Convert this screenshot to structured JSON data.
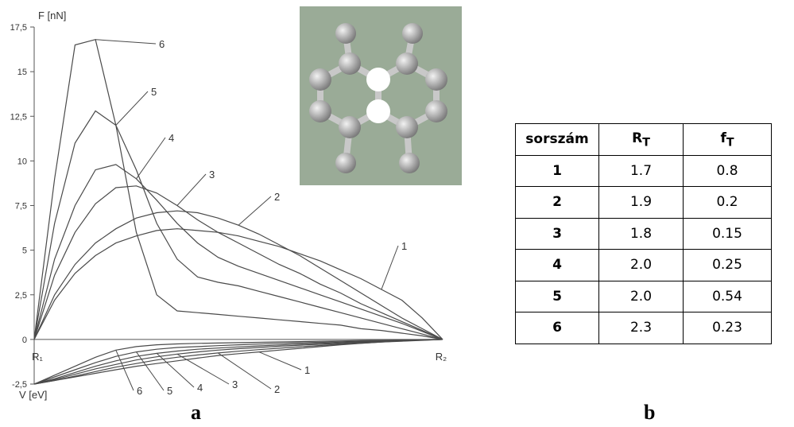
{
  "chart_data": {
    "type": "line",
    "y_label_top": "F [nN]",
    "y_label_bottom": "V [eV]",
    "categories": [
      "R₁",
      null,
      null,
      null,
      null,
      null,
      null,
      null,
      null,
      null,
      null,
      null,
      null,
      null,
      null,
      null,
      null,
      null,
      null,
      null,
      "R₂"
    ],
    "ylim": [
      -2.5,
      17.5
    ],
    "yticks": [
      {
        "value": -2.5,
        "label": "-2,5"
      },
      0,
      {
        "value": 2.5,
        "label": "2,5"
      },
      5,
      {
        "value": 7.5,
        "label": "7,5"
      },
      10,
      {
        "value": 12.5,
        "label": "12,5"
      },
      15,
      {
        "value": 17.5,
        "label": "17,5"
      }
    ],
    "series": [
      {
        "name": "1",
        "color": "#4a4a4a",
        "values": [
          0,
          2.2,
          3.7,
          4.7,
          5.4,
          5.8,
          6.1,
          6.2,
          6.1,
          6.0,
          5.8,
          5.5,
          5.2,
          4.8,
          4.4,
          3.9,
          3.4,
          2.8,
          2.2,
          1.2,
          0
        ]
      },
      {
        "name": "2",
        "color": "#4a4a4a",
        "values": [
          0,
          2.5,
          4.2,
          5.4,
          6.2,
          6.8,
          7.1,
          7.2,
          7.1,
          6.8,
          6.4,
          5.9,
          5.3,
          4.7,
          4.0,
          3.3,
          2.6,
          1.9,
          1.2,
          0.6,
          0
        ]
      },
      {
        "name": "3",
        "color": "#4a4a4a",
        "values": [
          0,
          3.6,
          6.0,
          7.6,
          8.5,
          8.6,
          8.2,
          7.5,
          6.7,
          6.0,
          5.4,
          4.8,
          4.2,
          3.7,
          3.1,
          2.6,
          2.0,
          1.5,
          1.0,
          0.5,
          0
        ]
      },
      {
        "name": "4",
        "color": "#4a4a4a",
        "values": [
          0,
          4.5,
          7.5,
          9.5,
          9.8,
          9.0,
          7.8,
          6.5,
          5.4,
          4.6,
          4.1,
          3.7,
          3.3,
          2.9,
          2.5,
          2.1,
          1.7,
          1.3,
          0.9,
          0.45,
          0
        ]
      },
      {
        "name": "5",
        "color": "#4a4a4a",
        "values": [
          0,
          6.5,
          11,
          12.8,
          12,
          9.5,
          6.5,
          4.5,
          3.5,
          3.2,
          3.0,
          2.7,
          2.4,
          2.1,
          1.8,
          1.5,
          1.2,
          0.9,
          0.6,
          0.3,
          0
        ]
      },
      {
        "name": "6",
        "color": "#4a4a4a",
        "values": [
          0,
          9,
          16.5,
          16.8,
          12,
          6,
          2.5,
          1.6,
          1.5,
          1.4,
          1.3,
          1.2,
          1.1,
          1.0,
          0.9,
          0.8,
          0.6,
          0.5,
          0.35,
          0.2,
          0
        ]
      },
      {
        "name": "1",
        "color": "#4a4a4a",
        "values": [
          -2.5,
          -2.3,
          -2.1,
          -1.9,
          -1.7,
          -1.5,
          -1.35,
          -1.2,
          -1.05,
          -0.9,
          -0.8,
          -0.7,
          -0.6,
          -0.5,
          -0.4,
          -0.3,
          -0.22,
          -0.15,
          -0.08,
          -0.03,
          0
        ]
      },
      {
        "name": "2",
        "color": "#4a4a4a",
        "values": [
          -2.5,
          -2.3,
          -2.05,
          -1.8,
          -1.55,
          -1.35,
          -1.15,
          -1.0,
          -0.87,
          -0.76,
          -0.66,
          -0.57,
          -0.49,
          -0.41,
          -0.34,
          -0.27,
          -0.21,
          -0.15,
          -0.1,
          -0.05,
          0
        ]
      },
      {
        "name": "3",
        "color": "#4a4a4a",
        "values": [
          -2.5,
          -2.25,
          -1.95,
          -1.65,
          -1.4,
          -1.15,
          -0.97,
          -0.82,
          -0.7,
          -0.6,
          -0.52,
          -0.45,
          -0.38,
          -0.32,
          -0.27,
          -0.22,
          -0.17,
          -0.12,
          -0.08,
          -0.04,
          0
        ]
      },
      {
        "name": "4",
        "color": "#4a4a4a",
        "values": [
          -2.5,
          -2.2,
          -1.85,
          -1.5,
          -1.2,
          -0.95,
          -0.78,
          -0.65,
          -0.55,
          -0.48,
          -0.42,
          -0.36,
          -0.31,
          -0.26,
          -0.22,
          -0.18,
          -0.14,
          -0.1,
          -0.06,
          -0.03,
          0
        ]
      },
      {
        "name": "5",
        "color": "#4a4a4a",
        "values": [
          -2.5,
          -2.1,
          -1.7,
          -1.3,
          -0.95,
          -0.7,
          -0.55,
          -0.45,
          -0.4,
          -0.35,
          -0.3,
          -0.26,
          -0.22,
          -0.19,
          -0.16,
          -0.13,
          -0.1,
          -0.07,
          -0.05,
          -0.02,
          0
        ]
      },
      {
        "name": "6",
        "color": "#4a4a4a",
        "values": [
          -2.5,
          -2.0,
          -1.5,
          -1.0,
          -0.6,
          -0.4,
          -0.3,
          -0.25,
          -0.22,
          -0.2,
          -0.18,
          -0.16,
          -0.14,
          -0.12,
          -0.1,
          -0.08,
          -0.06,
          -0.05,
          -0.03,
          -0.01,
          0
        ]
      }
    ]
  },
  "captions": [
    "a",
    "b"
  ],
  "table": {
    "header": [
      "sorszám",
      {
        "main": "R",
        "sub": "T"
      },
      {
        "main": "f",
        "sub": "T"
      }
    ],
    "rows": [
      [
        "1",
        "1.7",
        "0.8"
      ],
      [
        "2",
        "1.9",
        "0.2"
      ],
      [
        "3",
        "1.8",
        "0.15"
      ],
      [
        "4",
        "2.0",
        "0.25"
      ],
      [
        "5",
        "2.0",
        "0.54"
      ],
      [
        "6",
        "2.3",
        "0.23"
      ]
    ]
  }
}
